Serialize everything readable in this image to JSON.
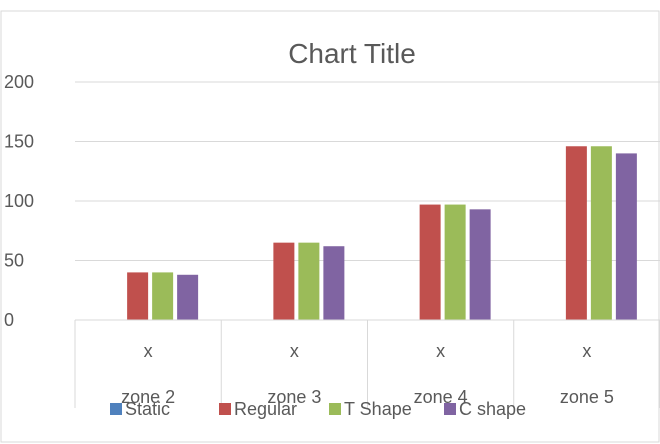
{
  "chart_data": {
    "type": "bar",
    "title": "Chart Title",
    "xlabel": "",
    "ylabel": "",
    "ylim": [
      0,
      200
    ],
    "yticks": [
      0,
      50,
      100,
      150,
      200
    ],
    "grid": true,
    "legend": "bottom",
    "categories": [
      {
        "top": "x",
        "bottom": "zone 2"
      },
      {
        "top": "x",
        "bottom": "zone 3"
      },
      {
        "top": "x",
        "bottom": "zone 4"
      },
      {
        "top": "x",
        "bottom": "zone 5"
      }
    ],
    "series": [
      {
        "name": "Static",
        "color": "#4f81bd",
        "values": [
          0,
          0,
          0,
          0
        ]
      },
      {
        "name": "Regular",
        "color": "#c0504d",
        "values": [
          40,
          65,
          97,
          146
        ]
      },
      {
        "name": "T Shape",
        "color": "#9bbb59",
        "values": [
          40,
          65,
          97,
          146
        ]
      },
      {
        "name": "C shape",
        "color": "#8064a2",
        "values": [
          38,
          62,
          93,
          140
        ]
      }
    ]
  }
}
